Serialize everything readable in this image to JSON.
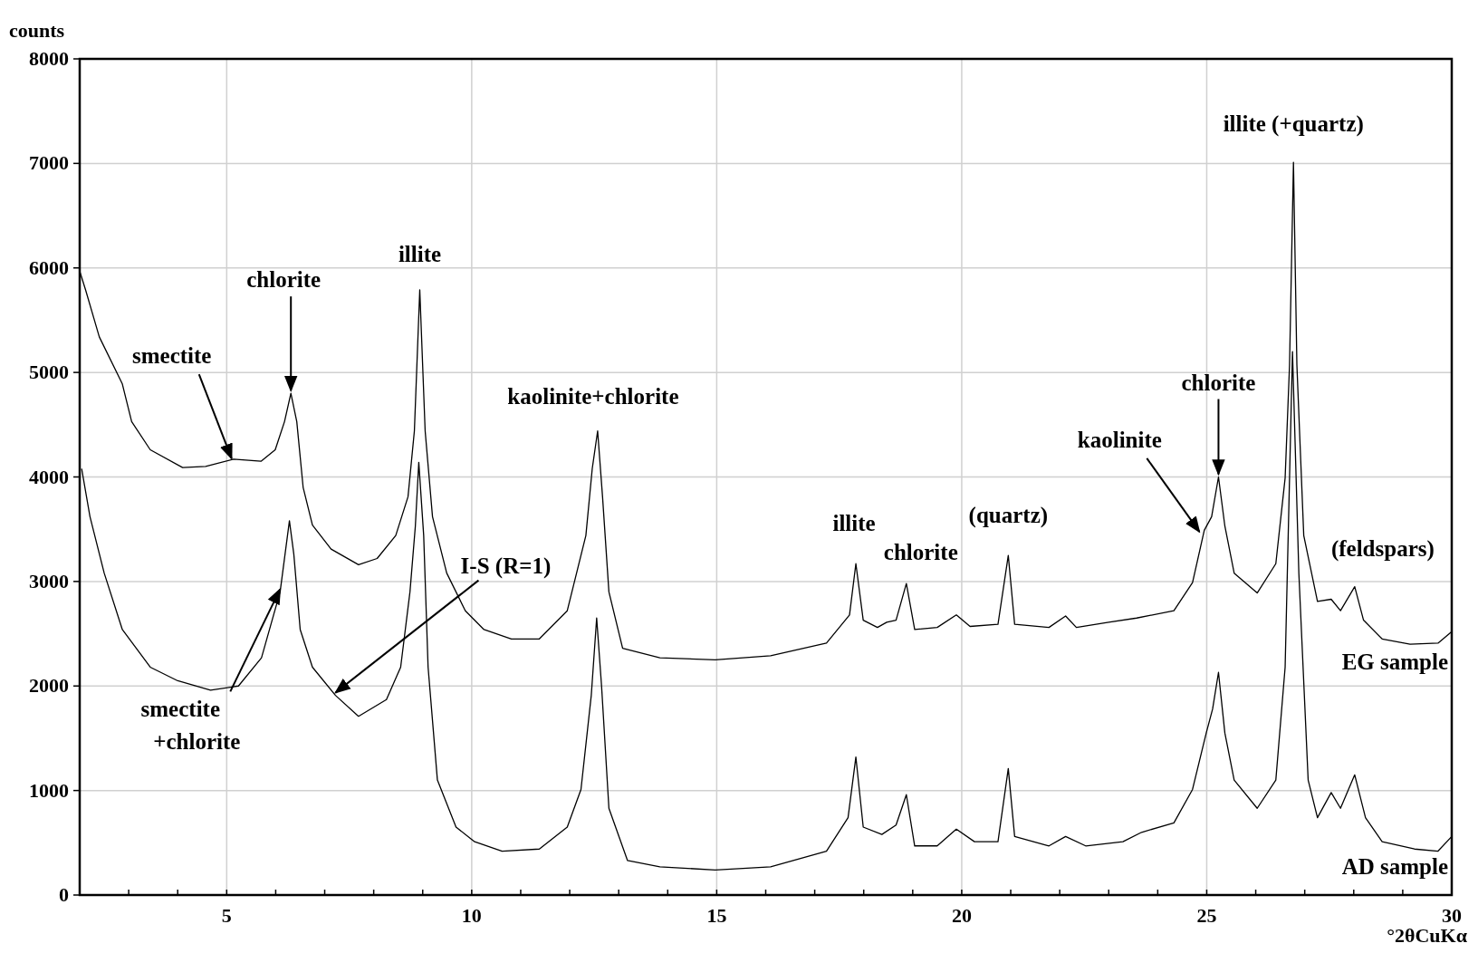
{
  "chart_data": {
    "type": "line",
    "ylabel": "counts",
    "xlabel": "°2θCuKα",
    "xlim": [
      2,
      30
    ],
    "ylim": [
      0,
      8000
    ],
    "xticks": [
      {
        "value": 3,
        "label": null
      },
      {
        "value": 4,
        "label": null
      },
      5,
      {
        "value": 6,
        "label": null
      },
      {
        "value": 7,
        "label": null
      },
      {
        "value": 8,
        "label": null
      },
      {
        "value": 9,
        "label": null
      },
      10,
      {
        "value": 11,
        "label": null
      },
      {
        "value": 12,
        "label": null
      },
      {
        "value": 13,
        "label": null
      },
      {
        "value": 14,
        "label": null
      },
      15,
      {
        "value": 16,
        "label": null
      },
      {
        "value": 17,
        "label": null
      },
      {
        "value": 18,
        "label": null
      },
      {
        "value": 19,
        "label": null
      },
      20,
      {
        "value": 21,
        "label": null
      },
      {
        "value": 22,
        "label": null
      },
      {
        "value": 23,
        "label": null
      },
      {
        "value": 24,
        "label": null
      },
      25,
      {
        "value": 26,
        "label": null
      },
      {
        "value": 27,
        "label": null
      },
      {
        "value": 28,
        "label": null
      },
      {
        "value": 29,
        "label": null
      },
      30
    ],
    "yticks": [
      0,
      1000,
      2000,
      3000,
      4000,
      5000,
      6000,
      7000,
      8000
    ],
    "grid": true,
    "marker": "none",
    "line_style": "solid",
    "series": [
      {
        "name": "EG sample",
        "color": "#000000",
        "x": [
          2.0,
          2.12,
          2.4,
          2.87,
          3.06,
          3.44,
          4.1,
          4.57,
          5.14,
          5.7,
          5.99,
          6.18,
          6.31,
          6.43,
          6.56,
          6.75,
          7.13,
          7.69,
          8.07,
          8.45,
          8.7,
          8.83,
          8.94,
          9.05,
          9.2,
          9.49,
          9.87,
          10.25,
          10.81,
          11.38,
          11.95,
          12.33,
          12.46,
          12.57,
          12.67,
          12.8,
          13.08,
          13.84,
          14.97,
          16.1,
          17.24,
          17.71,
          17.84,
          17.99,
          18.28,
          18.47,
          18.66,
          18.87,
          19.04,
          19.5,
          19.89,
          20.17,
          20.74,
          20.95,
          21.08,
          21.78,
          22.12,
          22.34,
          23.0,
          23.57,
          24.33,
          24.71,
          24.95,
          25.1,
          25.24,
          25.37,
          25.56,
          26.03,
          26.41,
          26.6,
          26.69,
          26.77,
          26.84,
          26.98,
          27.26,
          27.54,
          27.73,
          28.02,
          28.2,
          28.58,
          29.15,
          29.72,
          30
        ],
        "values": [
          5970,
          5790,
          5340,
          4890,
          4530,
          4260,
          4090,
          4100,
          4170,
          4150,
          4260,
          4530,
          4800,
          4530,
          3900,
          3540,
          3310,
          3160,
          3220,
          3440,
          3810,
          4440,
          5790,
          4440,
          3620,
          3080,
          2720,
          2540,
          2450,
          2450,
          2720,
          3440,
          4080,
          4440,
          3810,
          2900,
          2360,
          2270,
          2250,
          2290,
          2410,
          2680,
          3170,
          2630,
          2560,
          2610,
          2630,
          2980,
          2540,
          2560,
          2680,
          2570,
          2590,
          3250,
          2590,
          2560,
          2670,
          2560,
          2610,
          2650,
          2720,
          2990,
          3490,
          3620,
          4000,
          3530,
          3080,
          2890,
          3170,
          3990,
          5070,
          7010,
          5070,
          3440,
          2810,
          2830,
          2720,
          2950,
          2630,
          2450,
          2400,
          2410,
          2520
        ]
      },
      {
        "name": "AD sample",
        "color": "#000000",
        "x": [
          2.04,
          2.21,
          2.5,
          2.87,
          3.44,
          4.0,
          4.67,
          5.24,
          5.71,
          6.09,
          6.28,
          6.37,
          6.5,
          6.75,
          7.22,
          7.69,
          8.26,
          8.55,
          8.74,
          8.85,
          8.92,
          9.02,
          9.11,
          9.3,
          9.68,
          10.06,
          10.62,
          11.38,
          11.95,
          12.23,
          12.44,
          12.55,
          12.65,
          12.8,
          13.18,
          13.84,
          14.97,
          16.1,
          17.24,
          17.68,
          17.84,
          17.99,
          18.37,
          18.66,
          18.87,
          19.04,
          19.5,
          19.89,
          20.26,
          20.74,
          20.95,
          21.08,
          21.78,
          22.12,
          22.53,
          23.29,
          23.67,
          24.33,
          24.71,
          24.99,
          25.12,
          25.24,
          25.37,
          25.56,
          26.03,
          26.41,
          26.6,
          26.75,
          26.88,
          27.07,
          27.26,
          27.54,
          27.73,
          28.02,
          28.24,
          28.58,
          29.24,
          29.72,
          30
        ],
        "values": [
          4080,
          3620,
          3080,
          2540,
          2180,
          2050,
          1960,
          2000,
          2270,
          2900,
          3580,
          3260,
          2540,
          2180,
          1910,
          1710,
          1870,
          2180,
          2900,
          3530,
          4140,
          3440,
          2180,
          1100,
          650,
          510,
          420,
          440,
          650,
          1010,
          1910,
          2650,
          2000,
          830,
          330,
          270,
          240,
          270,
          420,
          740,
          1320,
          650,
          580,
          670,
          960,
          470,
          470,
          630,
          510,
          510,
          1210,
          560,
          470,
          560,
          470,
          510,
          600,
          690,
          1010,
          1550,
          1780,
          2130,
          1550,
          1100,
          830,
          1100,
          2180,
          5200,
          3080,
          1100,
          740,
          980,
          830,
          1150,
          740,
          510,
          440,
          420,
          560
        ]
      }
    ],
    "annotations": [
      {
        "text": "smectite",
        "x": 5.1,
        "y": 4150
      },
      {
        "text": "chlorite",
        "x": 6.31,
        "y": 4800
      },
      {
        "text": "illite",
        "x": 8.94,
        "y": 5790
      },
      {
        "text": "kaolinite+chlorite",
        "x": 12.57,
        "y": 4440
      },
      {
        "text": "I-S (R=1)",
        "x": 7.22,
        "y": 1910
      },
      {
        "text": "smectite +chlorite",
        "x": 6.09,
        "y": 2900
      },
      {
        "text": "illite",
        "x": 17.84,
        "y": 3170
      },
      {
        "text": "chlorite",
        "x": 18.87,
        "y": 2980
      },
      {
        "text": "(quartz)",
        "x": 20.95,
        "y": 3250
      },
      {
        "text": "kaolinite",
        "x": 24.85,
        "y": 3450
      },
      {
        "text": "chlorite",
        "x": 25.24,
        "y": 4000
      },
      {
        "text": "illite (+quartz)",
        "x": 26.77,
        "y": 7010
      },
      {
        "text": "(feldspars)",
        "x": 28.02,
        "y": 2950
      }
    ]
  }
}
